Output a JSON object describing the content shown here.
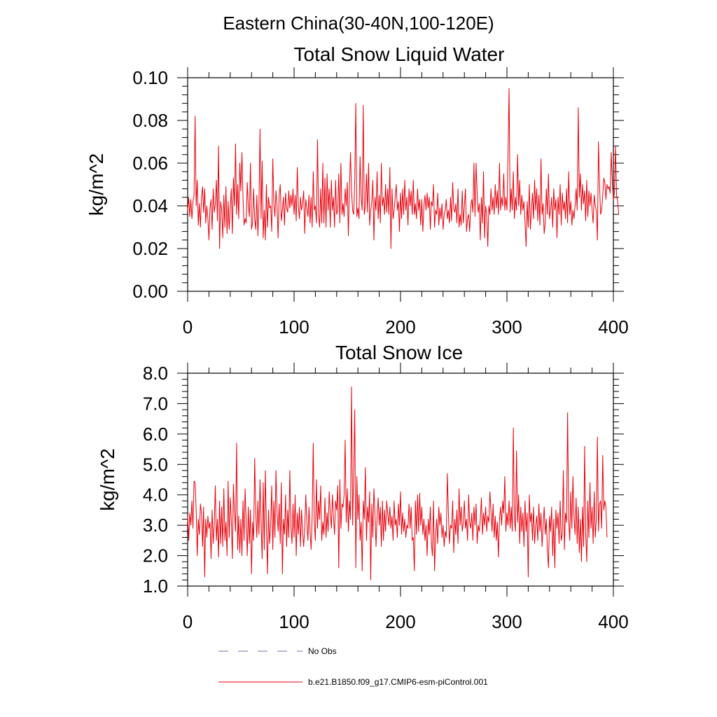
{
  "figure_title": "Eastern China(30-40N,100-120E)",
  "legend": [
    {
      "label": "No Obs",
      "style": "dashed",
      "color": "#6b73a6"
    },
    {
      "label": "b.e21.B1850.f09_g17.CMIP6-esm-piControl.001",
      "style": "solid",
      "color": "#e8000b"
    }
  ],
  "chart_data": [
    {
      "type": "line",
      "title": "Total Snow Liquid Water",
      "xlabel": "",
      "ylabel": "kg/m^2",
      "xlim": [
        0,
        400
      ],
      "ylim": [
        0.0,
        0.1
      ],
      "xticks": [
        0,
        100,
        200,
        300,
        400
      ],
      "xtick_labels": [
        "0",
        "100",
        "200",
        "300",
        "400"
      ],
      "yticks": [
        0.0,
        0.02,
        0.04,
        0.06,
        0.08,
        0.1
      ],
      "ytick_labels": [
        "0.00",
        "0.02",
        "0.04",
        "0.06",
        "0.08",
        "0.10"
      ],
      "grid": false,
      "series": [
        {
          "name": "b.e21.B1850.f09_g17.CMIP6-esm-piControl.001",
          "color": "#e8000b",
          "x_start": 0,
          "x_step": 1,
          "values": [
            0.038,
            0.044,
            0.035,
            0.043,
            0.034,
            0.042,
            0.045,
            0.082,
            0.04,
            0.052,
            0.031,
            0.041,
            0.03,
            0.044,
            0.049,
            0.037,
            0.048,
            0.032,
            0.04,
            0.034,
            0.024,
            0.039,
            0.043,
            0.029,
            0.048,
            0.037,
            0.041,
            0.052,
            0.033,
            0.068,
            0.02,
            0.042,
            0.038,
            0.025,
            0.045,
            0.03,
            0.049,
            0.027,
            0.042,
            0.029,
            0.039,
            0.048,
            0.027,
            0.053,
            0.04,
            0.069,
            0.036,
            0.05,
            0.034,
            0.06,
            0.047,
            0.065,
            0.044,
            0.031,
            0.034,
            0.032,
            0.051,
            0.04,
            0.035,
            0.06,
            0.029,
            0.032,
            0.048,
            0.034,
            0.029,
            0.045,
            0.026,
            0.041,
            0.076,
            0.034,
            0.061,
            0.025,
            0.038,
            0.024,
            0.05,
            0.03,
            0.044,
            0.039,
            0.04,
            0.028,
            0.062,
            0.041,
            0.035,
            0.047,
            0.04,
            0.025,
            0.045,
            0.05,
            0.033,
            0.038,
            0.044,
            0.031,
            0.046,
            0.039,
            0.037,
            0.047,
            0.039,
            0.045,
            0.04,
            0.048,
            0.036,
            0.045,
            0.033,
            0.058,
            0.04,
            0.034,
            0.044,
            0.038,
            0.041,
            0.047,
            0.027,
            0.043,
            0.039,
            0.035,
            0.045,
            0.032,
            0.044,
            0.03,
            0.056,
            0.038,
            0.04,
            0.032,
            0.071,
            0.036,
            0.03,
            0.048,
            0.032,
            0.06,
            0.032,
            0.053,
            0.03,
            0.055,
            0.038,
            0.048,
            0.03,
            0.052,
            0.038,
            0.044,
            0.03,
            0.052,
            0.036,
            0.038,
            0.055,
            0.032,
            0.06,
            0.036,
            0.041,
            0.035,
            0.048,
            0.04,
            0.051,
            0.026,
            0.048,
            0.065,
            0.047,
            0.038,
            0.036,
            0.052,
            0.088,
            0.035,
            0.039,
            0.034,
            0.063,
            0.044,
            0.038,
            0.087,
            0.036,
            0.04,
            0.055,
            0.037,
            0.06,
            0.031,
            0.038,
            0.042,
            0.052,
            0.024,
            0.044,
            0.038,
            0.056,
            0.034,
            0.045,
            0.032,
            0.06,
            0.04,
            0.044,
            0.036,
            0.05,
            0.037,
            0.048,
            0.036,
            0.058,
            0.02,
            0.048,
            0.034,
            0.038,
            0.044,
            0.05,
            0.038,
            0.042,
            0.028,
            0.046,
            0.034,
            0.048,
            0.036,
            0.052,
            0.038,
            0.044,
            0.031,
            0.048,
            0.04,
            0.047,
            0.036,
            0.052,
            0.036,
            0.041,
            0.034,
            0.048,
            0.038,
            0.043,
            0.031,
            0.043,
            0.028,
            0.04,
            0.045,
            0.038,
            0.046,
            0.039,
            0.044,
            0.029,
            0.042,
            0.04,
            0.05,
            0.03,
            0.038,
            0.036,
            0.046,
            0.031,
            0.039,
            0.034,
            0.041,
            0.029,
            0.036,
            0.038,
            0.043,
            0.034,
            0.038,
            0.032,
            0.044,
            0.033,
            0.051,
            0.039,
            0.037,
            0.041,
            0.032,
            0.048,
            0.03,
            0.036,
            0.031,
            0.047,
            0.032,
            0.04,
            0.048,
            0.028,
            0.034,
            0.036,
            0.028,
            0.04,
            0.043,
            0.037,
            0.06,
            0.035,
            0.06,
            0.046,
            0.037,
            0.041,
            0.024,
            0.044,
            0.032,
            0.056,
            0.025,
            0.04,
            0.036,
            0.021,
            0.04,
            0.036,
            0.048,
            0.038,
            0.044,
            0.036,
            0.05,
            0.039,
            0.047,
            0.036,
            0.06,
            0.038,
            0.044,
            0.04,
            0.055,
            0.038,
            0.044,
            0.038,
            0.064,
            0.095,
            0.037,
            0.048,
            0.038,
            0.056,
            0.034,
            0.044,
            0.038,
            0.064,
            0.04,
            0.052,
            0.036,
            0.045,
            0.038,
            0.042,
            0.032,
            0.021,
            0.042,
            0.03,
            0.05,
            0.029,
            0.038,
            0.046,
            0.034,
            0.052,
            0.038,
            0.048,
            0.033,
            0.045,
            0.031,
            0.062,
            0.036,
            0.041,
            0.027,
            0.032,
            0.048,
            0.036,
            0.055,
            0.034,
            0.038,
            0.044,
            0.03,
            0.048,
            0.038,
            0.043,
            0.025,
            0.044,
            0.036,
            0.05,
            0.031,
            0.046,
            0.038,
            0.042,
            0.034,
            0.048,
            0.032,
            0.056,
            0.036,
            0.042,
            0.031,
            0.038,
            0.034,
            0.04,
            0.048,
            0.038,
            0.086,
            0.044,
            0.055,
            0.038,
            0.05,
            0.041,
            0.047,
            0.033,
            0.052,
            0.035,
            0.047,
            0.04,
            0.046,
            0.038,
            0.032,
            0.045,
            0.04,
            0.038,
            0.024,
            0.07,
            0.05,
            0.036,
            0.038,
            0.045,
            0.053,
            0.051,
            0.043,
            0.05,
            0.048,
            0.049,
            0.046,
            0.065,
            0.051,
            0.043,
            0.046,
            0.068,
            0.045,
            0.042,
            0.036
          ]
        }
      ]
    },
    {
      "type": "line",
      "title": "Total Snow Ice",
      "xlabel": "",
      "ylabel": "kg/m^2",
      "xlim": [
        0,
        400
      ],
      "ylim": [
        1.0,
        8.0
      ],
      "xticks": [
        0,
        100,
        200,
        300,
        400
      ],
      "xtick_labels": [
        "0",
        "100",
        "200",
        "300",
        "400"
      ],
      "yticks": [
        1,
        2,
        3,
        4,
        5,
        6,
        7,
        8
      ],
      "ytick_labels": [
        "1.0",
        "2.0",
        "3.0",
        "4.0",
        "5.0",
        "6.0",
        "7.0",
        "8.0"
      ],
      "grid": false,
      "series": [
        {
          "name": "b.e21.B1850.f09_g17.CMIP6-esm-piControl.001",
          "color": "#e8000b",
          "x_start": 0,
          "x_step": 1,
          "values": [
            3.3,
            2.5,
            3.4,
            3.0,
            3.8,
            2.9,
            4.45,
            4.4,
            3.5,
            2.0,
            3.2,
            2.7,
            3.7,
            3.4,
            2.3,
            3.6,
            1.3,
            3.2,
            2.6,
            3.3,
            2.9,
            3.1,
            1.9,
            3.5,
            2.4,
            3.0,
            4.3,
            2.5,
            3.2,
            1.95,
            3.8,
            2.4,
            3.6,
            2.3,
            4.2,
            2.5,
            3.1,
            2.0,
            4.45,
            2.6,
            3.9,
            3.2,
            1.9,
            4.35,
            3.4,
            2.8,
            5.7,
            2.2,
            3.3,
            2.1,
            3.2,
            2.0,
            3.8,
            2.5,
            4.2,
            3.1,
            2.0,
            3.6,
            2.4,
            3.5,
            1.4,
            3.1,
            2.5,
            5.2,
            3.4,
            2.6,
            3.8,
            2.7,
            4.5,
            3.1,
            1.9,
            4.4,
            2.2,
            4.8,
            3.0,
            1.4,
            3.5,
            2.4,
            3.0,
            4.3,
            2.2,
            3.8,
            2.6,
            4.8,
            3.4,
            2.8,
            3.7,
            2.4,
            4.4,
            1.4,
            3.2,
            2.7,
            4.0,
            2.3,
            3.5,
            2.6,
            4.8,
            3.0,
            2.4,
            3.7,
            2.6,
            4.0,
            2.0,
            3.4,
            2.7,
            3.6,
            2.3,
            3.5,
            2.8,
            2.3,
            2.9,
            4.0,
            3.1,
            2.5,
            3.6,
            2.8,
            2.2,
            3.3,
            5.7,
            3.1,
            2.5,
            4.5,
            2.9,
            3.8,
            3.2,
            4.3,
            2.5,
            3.1,
            2.7,
            3.9,
            2.6,
            3.4,
            2.8,
            4.1,
            3.4,
            2.9,
            4.0,
            3.3,
            2.7,
            3.8,
            3.5,
            4.3,
            1.6,
            4.5,
            2.9,
            3.7,
            3.6,
            4.0,
            5.8,
            3.1,
            4.2,
            2.8,
            3.8,
            3.2,
            7.55,
            3.0,
            4.7,
            6.8,
            1.6,
            4.6,
            3.2,
            4.0,
            2.5,
            3.1,
            1.5,
            3.8,
            3.2,
            4.9,
            2.5,
            3.6,
            3.1,
            4.1,
            1.2,
            3.7,
            2.6,
            4.2,
            3.4,
            2.3,
            3.3,
            3.9,
            3.0,
            3.6,
            2.3,
            3.8,
            2.5,
            3.5,
            2.8,
            3.8,
            3.4,
            3.0,
            3.6,
            2.9,
            3.3,
            2.5,
            3.8,
            3.0,
            3.2,
            2.6,
            3.7,
            3.0,
            4.1,
            2.7,
            3.4,
            2.8,
            3.2,
            2.6,
            3.0,
            2.9,
            3.7,
            2.9,
            3.6,
            2.5,
            2.6,
            1.5,
            3.8,
            2.7,
            4.0,
            2.8,
            4.05,
            3.0,
            3.6,
            2.7,
            3.2,
            2.5,
            3.0,
            2.0,
            3.2,
            2.7,
            3.6,
            2.4,
            2.0,
            3.8,
            1.5,
            2.7,
            3.2,
            2.4,
            3.6,
            3.0,
            3.4,
            2.6,
            3.0,
            2.3,
            2.8,
            2.6,
            4.7,
            3.4,
            2.4,
            3.0,
            2.9,
            3.8,
            2.1,
            3.2,
            2.7,
            3.5,
            2.4,
            4.2,
            3.0,
            3.6,
            2.8,
            3.1,
            3.8,
            2.9,
            3.2,
            2.5,
            4.0,
            3.1,
            2.9,
            3.4,
            2.5,
            3.6,
            3.0,
            3.7,
            2.4,
            3.0,
            2.8,
            3.2,
            3.9,
            2.7,
            3.4,
            3.0,
            3.6,
            2.8,
            3.3,
            3.1,
            4.1,
            3.5,
            2.8,
            3.7,
            2.6,
            3.3,
            2.5,
            3.1,
            1.95,
            3.2,
            3.6,
            3.0,
            3.8,
            3.4,
            4.6,
            2.8,
            3.4,
            3.0,
            3.8,
            2.9,
            3.6,
            2.8,
            6.2,
            3.2,
            2.8,
            5.45,
            3.1,
            4.0,
            2.4,
            3.6,
            2.8,
            3.4,
            2.3,
            3.8,
            2.8,
            3.4,
            1.3,
            4.0,
            3.1,
            3.4,
            2.5,
            3.6,
            2.4,
            3.0,
            3.3,
            2.5,
            3.7,
            2.8,
            3.4,
            2.3,
            3.0,
            3.6,
            2.7,
            3.2,
            2.2,
            1.6,
            3.3,
            2.8,
            3.6,
            2.0,
            3.2,
            1.6,
            3.5,
            2.9,
            3.4,
            2.4,
            3.8,
            2.5,
            2.7,
            4.8,
            2.2,
            3.4,
            3.1,
            6.7,
            3.2,
            2.5,
            4.1,
            2.9,
            4.6,
            3.3,
            2.7,
            3.9,
            2.4,
            3.6,
            2.1,
            3.2,
            1.8,
            3.6,
            2.3,
            5.6,
            2.7,
            1.8,
            3.8,
            2.6,
            4.4,
            2.9,
            3.6,
            2.4,
            4.1,
            2.6,
            3.2,
            5.9,
            2.8,
            3.7,
            3.8,
            2.9,
            5.3,
            3.5,
            3.8,
            3.6,
            2.6
          ]
        }
      ]
    }
  ]
}
